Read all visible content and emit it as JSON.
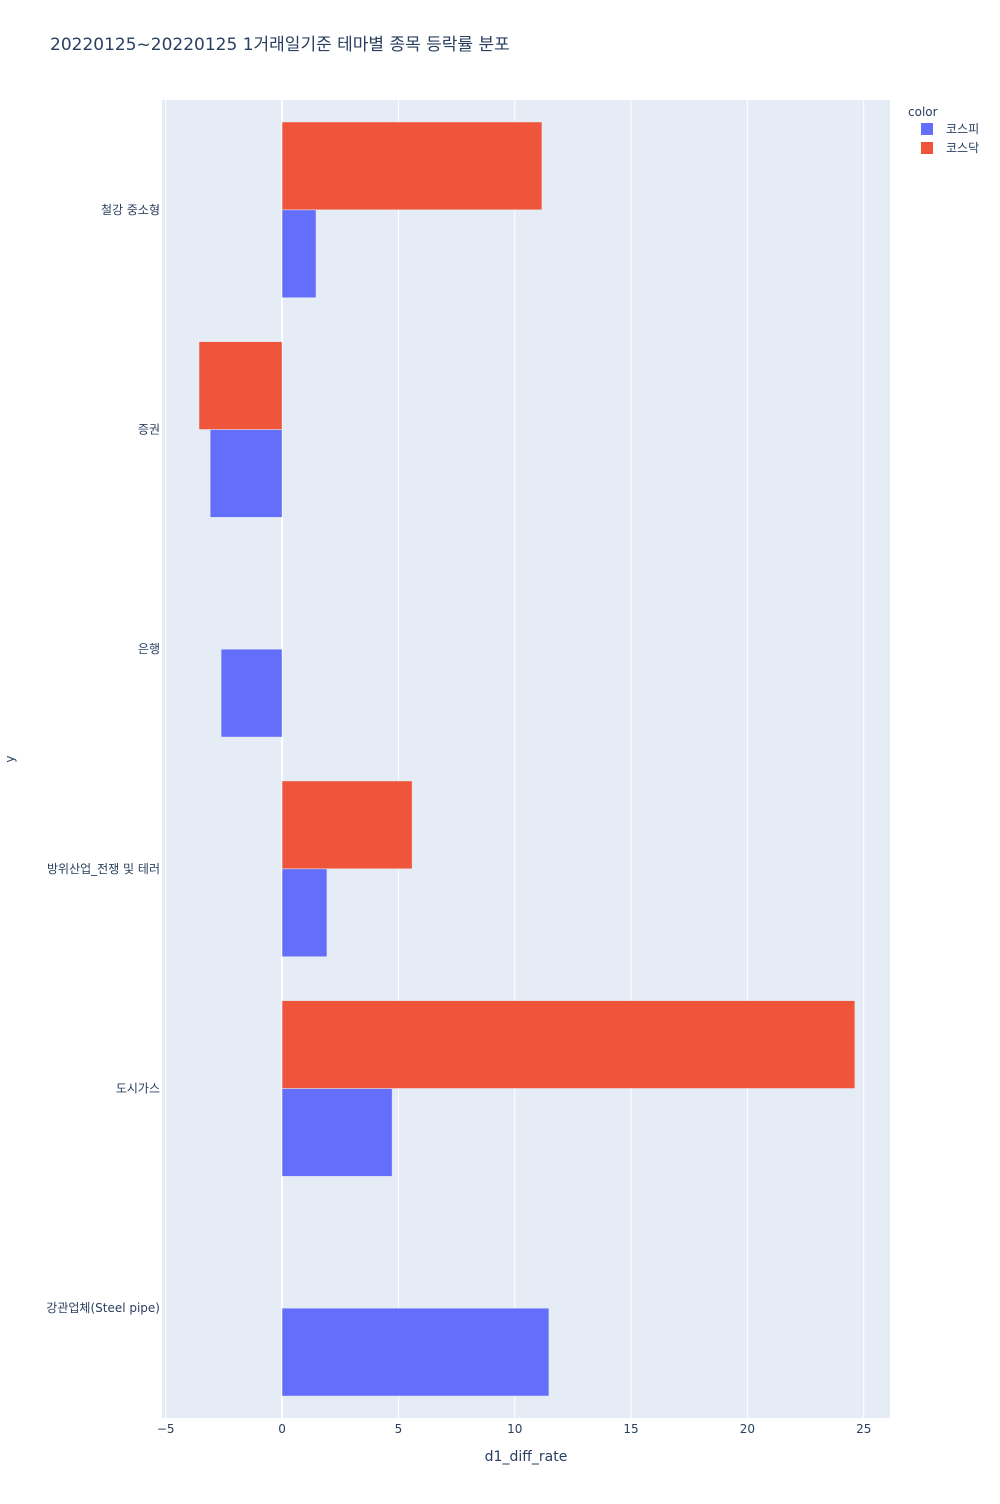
{
  "chart_data": {
    "type": "bar",
    "orientation": "horizontal",
    "barmode": "group",
    "title": "20220125~20220125 1거래일기준 테마별 종목 등락률 분포",
    "xlabel": "d1_diff_rate",
    "ylabel": "y",
    "xlim": [
      -5.16,
      26.13
    ],
    "xticks": [
      -5,
      0,
      5,
      10,
      15,
      20,
      25
    ],
    "categories": [
      "강관업체(Steel pipe)",
      "도시가스",
      "방위산업_전쟁 및 테러",
      "은행",
      "증권",
      "철강 중소형"
    ],
    "legend_title": "color",
    "legend_position": "top-right",
    "grid": true,
    "series": [
      {
        "name": "코스피",
        "color": "#636efa",
        "values": [
          11.47,
          4.73,
          1.93,
          -2.62,
          -3.09,
          1.46
        ]
      },
      {
        "name": "코스닥",
        "color": "#ef553b",
        "values": [
          null,
          24.62,
          5.59,
          null,
          -3.57,
          11.17
        ]
      }
    ]
  }
}
